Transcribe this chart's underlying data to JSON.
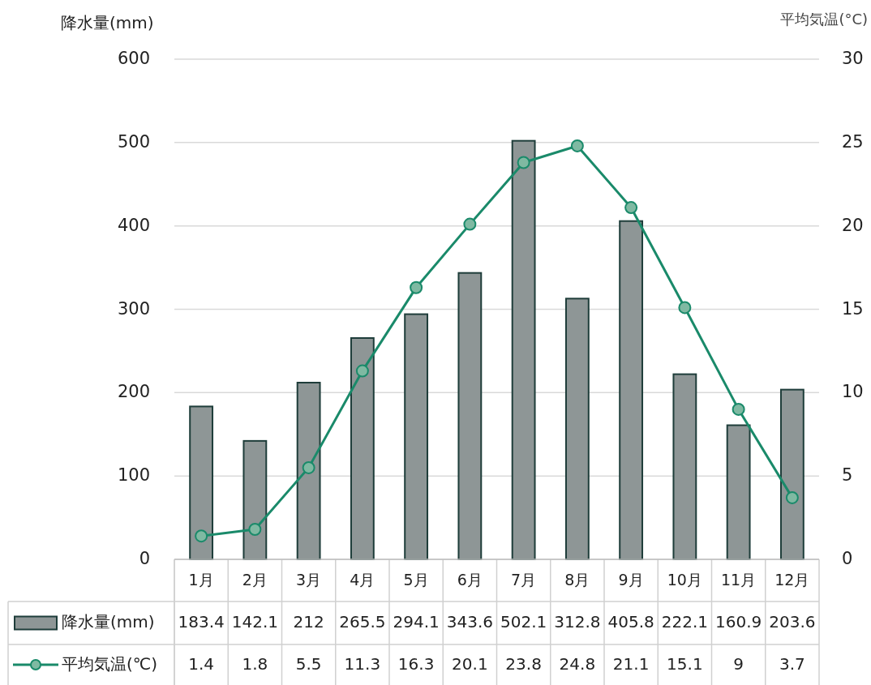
{
  "chart_data": {
    "type": "bar",
    "categories": [
      "1月",
      "2月",
      "3月",
      "4月",
      "5月",
      "6月",
      "7月",
      "8月",
      "9月",
      "10月",
      "11月",
      "12月"
    ],
    "series": [
      {
        "name": "降水量(mm)",
        "color": "#8e9696",
        "values": [
          183.4,
          142.1,
          212,
          265.5,
          294.1,
          343.6,
          502.1,
          312.8,
          405.8,
          222.1,
          160.9,
          203.6
        ]
      },
      {
        "name": "平均気温(℃)",
        "type": "line",
        "axis": "y2",
        "color": "#1a8a6a",
        "values": [
          1.4,
          1.8,
          5.5,
          11.3,
          16.3,
          20.1,
          23.8,
          24.8,
          21.1,
          15.1,
          9,
          3.7
        ]
      }
    ],
    "ylabel": "降水量(mm)",
    "y2label": "平均気温(°C)",
    "ylim": [
      0,
      600
    ],
    "yticks": [
      0,
      100,
      200,
      300,
      400,
      500,
      600
    ],
    "y2lim": [
      0,
      30
    ],
    "y2ticks": [
      0,
      5,
      10,
      15,
      20,
      25,
      30
    ],
    "grid": "y",
    "legend": "bottom",
    "data_labels": true,
    "marker": "circle"
  }
}
